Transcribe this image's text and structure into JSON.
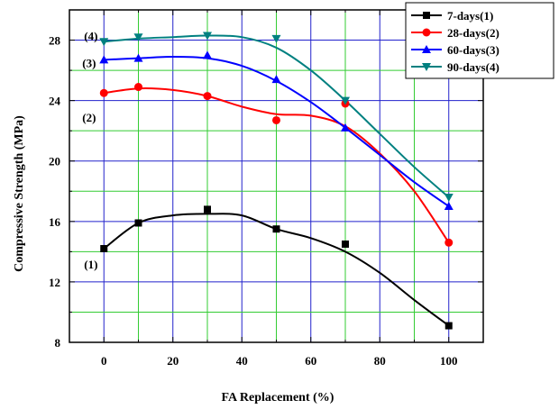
{
  "chart_data": {
    "type": "line",
    "title": "",
    "xlabel": "FA Replacement (%)",
    "ylabel": "Compressive Strength (MPa)",
    "xlim": [
      -10,
      110
    ],
    "ylim": [
      8,
      30
    ],
    "xticks": [
      0,
      20,
      40,
      60,
      80,
      100
    ],
    "yticks": [
      8,
      12,
      16,
      20,
      24,
      28
    ],
    "grid": {
      "minor_x_step": 10,
      "minor_y_step": 2,
      "minor_color": "#33cc33",
      "major_color": "#2222cc",
      "on": true
    },
    "legend_position": "top-right",
    "series": [
      {
        "name": "7-days(1)",
        "label": "(1)",
        "color": "#000000",
        "marker": "square",
        "x": [
          0,
          10,
          30,
          50,
          70,
          100
        ],
        "y": [
          14.2,
          15.9,
          16.8,
          15.5,
          14.5,
          9.1
        ],
        "fit_x": [
          0,
          10,
          20,
          30,
          40,
          50,
          60,
          70,
          80,
          90,
          100
        ],
        "fit_y": [
          14.2,
          15.9,
          16.4,
          16.5,
          16.4,
          15.5,
          14.9,
          14.0,
          12.6,
          10.8,
          9.1
        ]
      },
      {
        "name": "28-days(2)",
        "label": "(2)",
        "color": "#ff0000",
        "marker": "circle",
        "x": [
          0,
          10,
          30,
          50,
          70,
          100
        ],
        "y": [
          24.5,
          24.9,
          24.3,
          22.7,
          23.8,
          14.6
        ],
        "fit_x": [
          0,
          10,
          20,
          30,
          40,
          50,
          60,
          70,
          80,
          90,
          100
        ],
        "fit_y": [
          24.5,
          24.8,
          24.7,
          24.3,
          23.6,
          23.1,
          23.0,
          22.3,
          20.5,
          18.0,
          14.6
        ]
      },
      {
        "name": "60-days(3)",
        "label": "(3)",
        "color": "#0000ff",
        "marker": "triangle-up",
        "x": [
          0,
          10,
          30,
          50,
          70,
          100
        ],
        "y": [
          26.7,
          26.8,
          27.0,
          25.4,
          22.2,
          17.0
        ],
        "fit_x": [
          0,
          10,
          20,
          30,
          40,
          50,
          60,
          70,
          80,
          90,
          100
        ],
        "fit_y": [
          26.7,
          26.8,
          26.9,
          26.8,
          26.3,
          25.3,
          23.9,
          22.2,
          20.4,
          18.6,
          17.0
        ]
      },
      {
        "name": "90-days(4)",
        "label": "(4)",
        "color": "#008080",
        "marker": "triangle-down",
        "x": [
          0,
          10,
          30,
          50,
          70,
          100
        ],
        "y": [
          27.9,
          28.2,
          28.3,
          28.1,
          24.0,
          17.6
        ],
        "fit_x": [
          0,
          10,
          20,
          30,
          40,
          50,
          60,
          70,
          80,
          90,
          100
        ],
        "fit_y": [
          27.9,
          28.1,
          28.2,
          28.3,
          28.2,
          27.5,
          26.0,
          24.0,
          21.8,
          19.6,
          17.6
        ]
      }
    ]
  }
}
